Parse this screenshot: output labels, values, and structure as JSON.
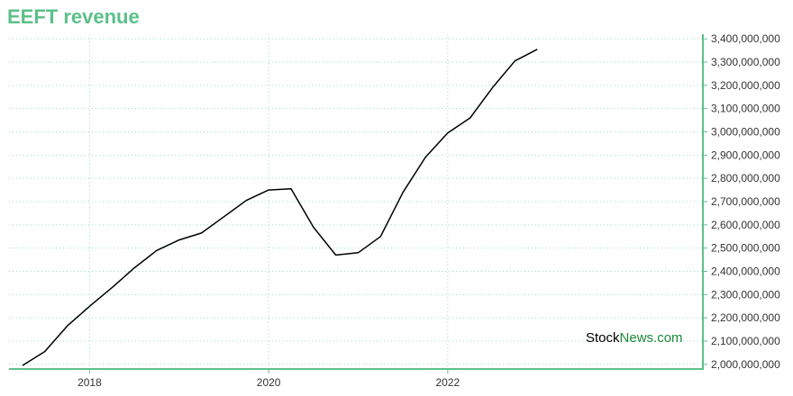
{
  "colors": {
    "title": "#5dc08a",
    "axis": "#5dc08a",
    "grid": "#9fd9c4",
    "line": "#000000",
    "watermark_dark": "#000000",
    "watermark_accent": "#1a8a3a"
  },
  "watermark": {
    "part1": "Stock",
    "part2": "News",
    "part3": ".com"
  },
  "chart_data": {
    "type": "line",
    "title": "EEFT revenue",
    "xlabel": "",
    "ylabel": "",
    "grid": true,
    "y_axis_side": "right",
    "xlim": [
      2017.1,
      2024.85
    ],
    "ylim": [
      1980000000,
      3420000000
    ],
    "x_ticks": [
      2018,
      2020,
      2022
    ],
    "x_tick_labels": [
      "2018",
      "2020",
      "2022"
    ],
    "y_ticks": [
      2000000000,
      2100000000,
      2200000000,
      2300000000,
      2400000000,
      2500000000,
      2600000000,
      2700000000,
      2800000000,
      2900000000,
      3000000000,
      3100000000,
      3200000000,
      3300000000,
      3400000000
    ],
    "y_tick_labels": [
      "2,000,000,000",
      "2,100,000,000",
      "2,200,000,000",
      "2,300,000,000",
      "2,400,000,000",
      "2,500,000,000",
      "2,600,000,000",
      "2,700,000,000",
      "2,800,000,000",
      "2,900,000,000",
      "3,000,000,000",
      "3,100,000,000",
      "3,200,000,000",
      "3,300,000,000",
      "3,400,000,000"
    ],
    "series": [
      {
        "x": [
          2017.25,
          2017.5,
          2017.75,
          2018.0,
          2018.25,
          2018.5,
          2018.75,
          2019.0,
          2019.25,
          2019.5,
          2019.75,
          2020.0,
          2020.25,
          2020.5,
          2020.75,
          2021.0,
          2021.25,
          2021.5,
          2021.75,
          2022.0,
          2022.25,
          2022.5,
          2022.75,
          2023.0
        ],
        "values": [
          1995000000,
          2055000000,
          2165000000,
          2250000000,
          2330000000,
          2415000000,
          2490000000,
          2535000000,
          2565000000,
          2635000000,
          2705000000,
          2750000000,
          2755000000,
          2590000000,
          2470000000,
          2480000000,
          2550000000,
          2740000000,
          2890000000,
          2995000000,
          3060000000,
          3190000000,
          3305000000,
          3355000000
        ]
      }
    ]
  }
}
